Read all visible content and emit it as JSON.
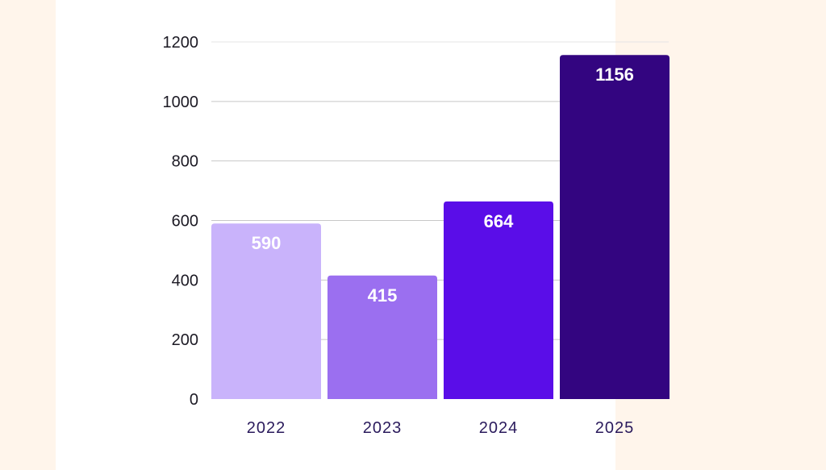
{
  "chart_data": {
    "type": "bar",
    "title": "",
    "xlabel": "",
    "ylabel": "",
    "categories": [
      "2022",
      "2023",
      "2024",
      "2025"
    ],
    "values": [
      590,
      415,
      664,
      1156
    ],
    "data_labels": [
      "590",
      "415",
      "664",
      "1156"
    ],
    "yticks": [
      0,
      200,
      400,
      600,
      800,
      1000,
      1200
    ],
    "ylim": [
      0,
      1200
    ],
    "grid": true,
    "colors": [
      "#c9b3fb",
      "#9b6ff0",
      "#5a0de8",
      "#330580"
    ],
    "background": "#fff5eb",
    "panel_background": "#ffffff"
  }
}
